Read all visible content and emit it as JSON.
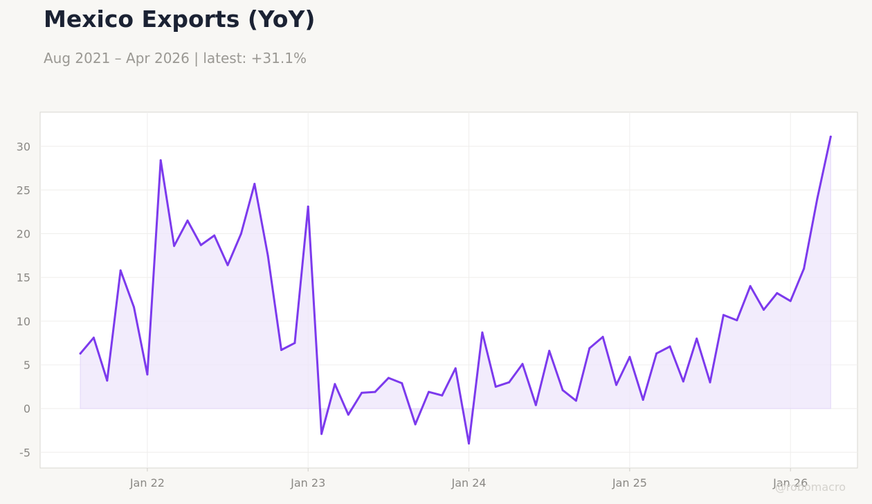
{
  "title": "Mexico Exports (YoY)",
  "subtitle": "Aug 2021 – Apr 2026 | latest: +31.1%",
  "watermark": "@robomacro",
  "colors": {
    "line": "#7c3aed",
    "fill": "#ede5fb",
    "grid": "#efeeec",
    "background": "#f8f7f4"
  },
  "chart_data": {
    "type": "area",
    "title": "Mexico Exports (YoY)",
    "x": [
      "2021-08",
      "2021-09",
      "2021-10",
      "2021-11",
      "2021-12",
      "2022-01",
      "2022-02",
      "2022-03",
      "2022-04",
      "2022-05",
      "2022-06",
      "2022-07",
      "2022-08",
      "2022-09",
      "2022-10",
      "2022-11",
      "2022-12",
      "2023-01",
      "2023-02",
      "2023-03",
      "2023-04",
      "2023-05",
      "2023-06",
      "2023-07",
      "2023-08",
      "2023-09",
      "2023-10",
      "2023-11",
      "2023-12",
      "2024-01",
      "2024-02",
      "2024-03",
      "2024-04",
      "2024-05",
      "2024-06",
      "2024-07",
      "2024-08",
      "2024-09",
      "2024-10",
      "2024-11",
      "2024-12",
      "2025-01",
      "2025-02",
      "2025-03",
      "2025-04",
      "2025-05",
      "2025-06",
      "2025-07",
      "2025-08",
      "2025-09",
      "2025-10",
      "2025-11",
      "2025-12",
      "2026-01",
      "2026-02",
      "2026-03",
      "2026-04"
    ],
    "series": [
      {
        "values": [
          6.3,
          8.1,
          3.2,
          15.8,
          11.6,
          3.9,
          28.4,
          18.6,
          21.5,
          18.7,
          19.8,
          16.4,
          20.0,
          25.7,
          17.5,
          6.7,
          7.5,
          23.1,
          -2.9,
          2.8,
          -0.7,
          1.8,
          1.9,
          3.5,
          2.9,
          -1.8,
          1.9,
          1.5,
          4.6,
          -4.0,
          8.7,
          2.5,
          3.0,
          5.1,
          0.4,
          6.6,
          2.1,
          0.9,
          6.9,
          8.2,
          2.7,
          5.9,
          1.0,
          6.3,
          7.1,
          3.1,
          8.0,
          3.0,
          10.7,
          10.1,
          14.0,
          11.3,
          13.2,
          12.3,
          16.0,
          24.0,
          31.1
        ]
      }
    ],
    "x_ticks": [
      "Jan 22",
      "Jan 23",
      "Jan 24",
      "Jan 25",
      "Jan 26"
    ],
    "x_tick_positions": [
      "2022-01",
      "2023-01",
      "2024-01",
      "2025-01",
      "2026-01"
    ],
    "y_ticks": [
      30,
      25,
      20,
      15,
      10,
      5,
      0,
      -5
    ],
    "y_tick_labels": [
      "30",
      "25",
      "20",
      "15",
      "10",
      "5",
      "0",
      "-5"
    ],
    "ylim": [
      -6.8,
      33.9
    ],
    "xlim": [
      "2021-05",
      "2026-06"
    ],
    "xlabel": "",
    "ylabel": "",
    "grid": true,
    "legend": "none"
  }
}
